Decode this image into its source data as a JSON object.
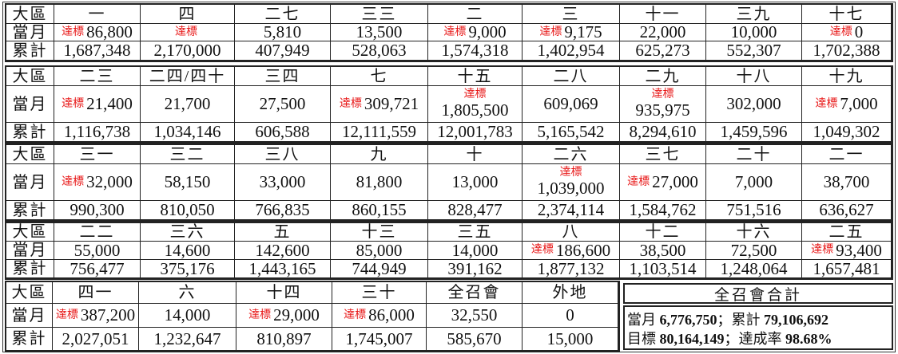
{
  "labels": {
    "region": "大區",
    "month": "當月",
    "cumulative": "累計",
    "target_tag": "達標"
  },
  "colors": {
    "target": "#e81818",
    "border": "#222222"
  },
  "blocks": [
    {
      "regions": [
        {
          "name": "一",
          "month": "86,800",
          "target": true,
          "cum": "1,687,348"
        },
        {
          "name": "四",
          "month": "",
          "target": true,
          "cum": "2,170,000"
        },
        {
          "name": "二七",
          "month": "5,810",
          "target": false,
          "cum": "407,949"
        },
        {
          "name": "三三",
          "month": "13,500",
          "target": false,
          "cum": "528,063"
        },
        {
          "name": "二",
          "month": "9,000",
          "target": true,
          "cum": "1,574,318"
        },
        {
          "name": "三",
          "month": "9,175",
          "target": true,
          "cum": "1,402,954"
        },
        {
          "name": "十一",
          "month": "22,000",
          "target": false,
          "cum": "625,273"
        },
        {
          "name": "三九",
          "month": "10,000",
          "target": false,
          "cum": "552,307"
        },
        {
          "name": "十七",
          "month": "0",
          "target": true,
          "cum": "1,702,388"
        }
      ]
    },
    {
      "regions": [
        {
          "name": "二三",
          "month": "21,400",
          "target": true,
          "cum": "1,116,738"
        },
        {
          "name": "二四/四十",
          "month": "21,700",
          "target": false,
          "cum": "1,034,146"
        },
        {
          "name": "三四",
          "month": "27,500",
          "target": false,
          "cum": "606,588"
        },
        {
          "name": "七",
          "month": "309,721",
          "target": true,
          "cum": "12,111,559"
        },
        {
          "name": "十五",
          "month": "1,805,500",
          "target": true,
          "stacked": true,
          "cum": "12,001,783"
        },
        {
          "name": "二八",
          "month": "609,069",
          "target": false,
          "cum": "5,165,542"
        },
        {
          "name": "二九",
          "month": "935,975",
          "target": true,
          "stacked": true,
          "cum": "8,294,610"
        },
        {
          "name": "十八",
          "month": "302,000",
          "target": false,
          "cum": "1,459,596"
        },
        {
          "name": "十九",
          "month": "7,000",
          "target": true,
          "cum": "1,049,302"
        }
      ]
    },
    {
      "regions": [
        {
          "name": "三一",
          "month": "32,000",
          "target": true,
          "cum": "990,300"
        },
        {
          "name": "三二",
          "month": "58,150",
          "target": false,
          "cum": "810,050"
        },
        {
          "name": "三八",
          "month": "33,000",
          "target": false,
          "cum": "766,835"
        },
        {
          "name": "九",
          "month": "81,800",
          "target": false,
          "cum": "860,155"
        },
        {
          "name": "十",
          "month": "13,000",
          "target": false,
          "cum": "828,477"
        },
        {
          "name": "二六",
          "month": "1,039,000",
          "target": true,
          "stacked": true,
          "cum": "2,374,114"
        },
        {
          "name": "三七",
          "month": "27,000",
          "target": true,
          "cum": "1,584,762"
        },
        {
          "name": "二十",
          "month": "7,000",
          "target": false,
          "cum": "751,516"
        },
        {
          "name": "二一",
          "month": "38,700",
          "target": false,
          "cum": "636,627"
        }
      ]
    },
    {
      "regions": [
        {
          "name": "二二",
          "month": "55,000",
          "target": false,
          "cum": "756,477"
        },
        {
          "name": "三六",
          "month": "14,600",
          "target": false,
          "cum": "375,176"
        },
        {
          "name": "五",
          "month": "142,600",
          "target": false,
          "cum": "1,443,165"
        },
        {
          "name": "十三",
          "month": "85,000",
          "target": false,
          "cum": "744,949"
        },
        {
          "name": "三五",
          "month": "14,000",
          "target": false,
          "cum": "391,162"
        },
        {
          "name": "八",
          "month": "186,600",
          "target": true,
          "cum": "1,877,132"
        },
        {
          "name": "十二",
          "month": "38,500",
          "target": false,
          "cum": "1,103,514"
        },
        {
          "name": "十六",
          "month": "72,500",
          "target": false,
          "cum": "1,248,064"
        },
        {
          "name": "二五",
          "month": "93,400",
          "target": true,
          "cum": "1,657,481"
        }
      ]
    },
    {
      "regions": [
        {
          "name": "四一",
          "month": "387,200",
          "target": true,
          "cum": "2,027,051"
        },
        {
          "name": "六",
          "month": "14,000",
          "target": false,
          "cum": "1,232,647"
        },
        {
          "name": "十四",
          "month": "29,000",
          "target": true,
          "cum": "810,897"
        },
        {
          "name": "三十",
          "month": "86,000",
          "target": true,
          "cum": "1,745,007"
        },
        {
          "name": "全召會",
          "month": "32,550",
          "target": false,
          "cum": "585,670"
        },
        {
          "name": "外地",
          "month": "0",
          "target": false,
          "cum": "15,000"
        }
      ]
    }
  ],
  "summary": {
    "title": "全召會合計",
    "month_label": "當月",
    "month_value": "6,776,750",
    "cum_label": "累計",
    "cum_value": "79,106,692",
    "target_label": "目標",
    "target_value": "80,164,149",
    "rate_label": "達成率",
    "rate_value": "98.68%",
    "sep": "；"
  }
}
